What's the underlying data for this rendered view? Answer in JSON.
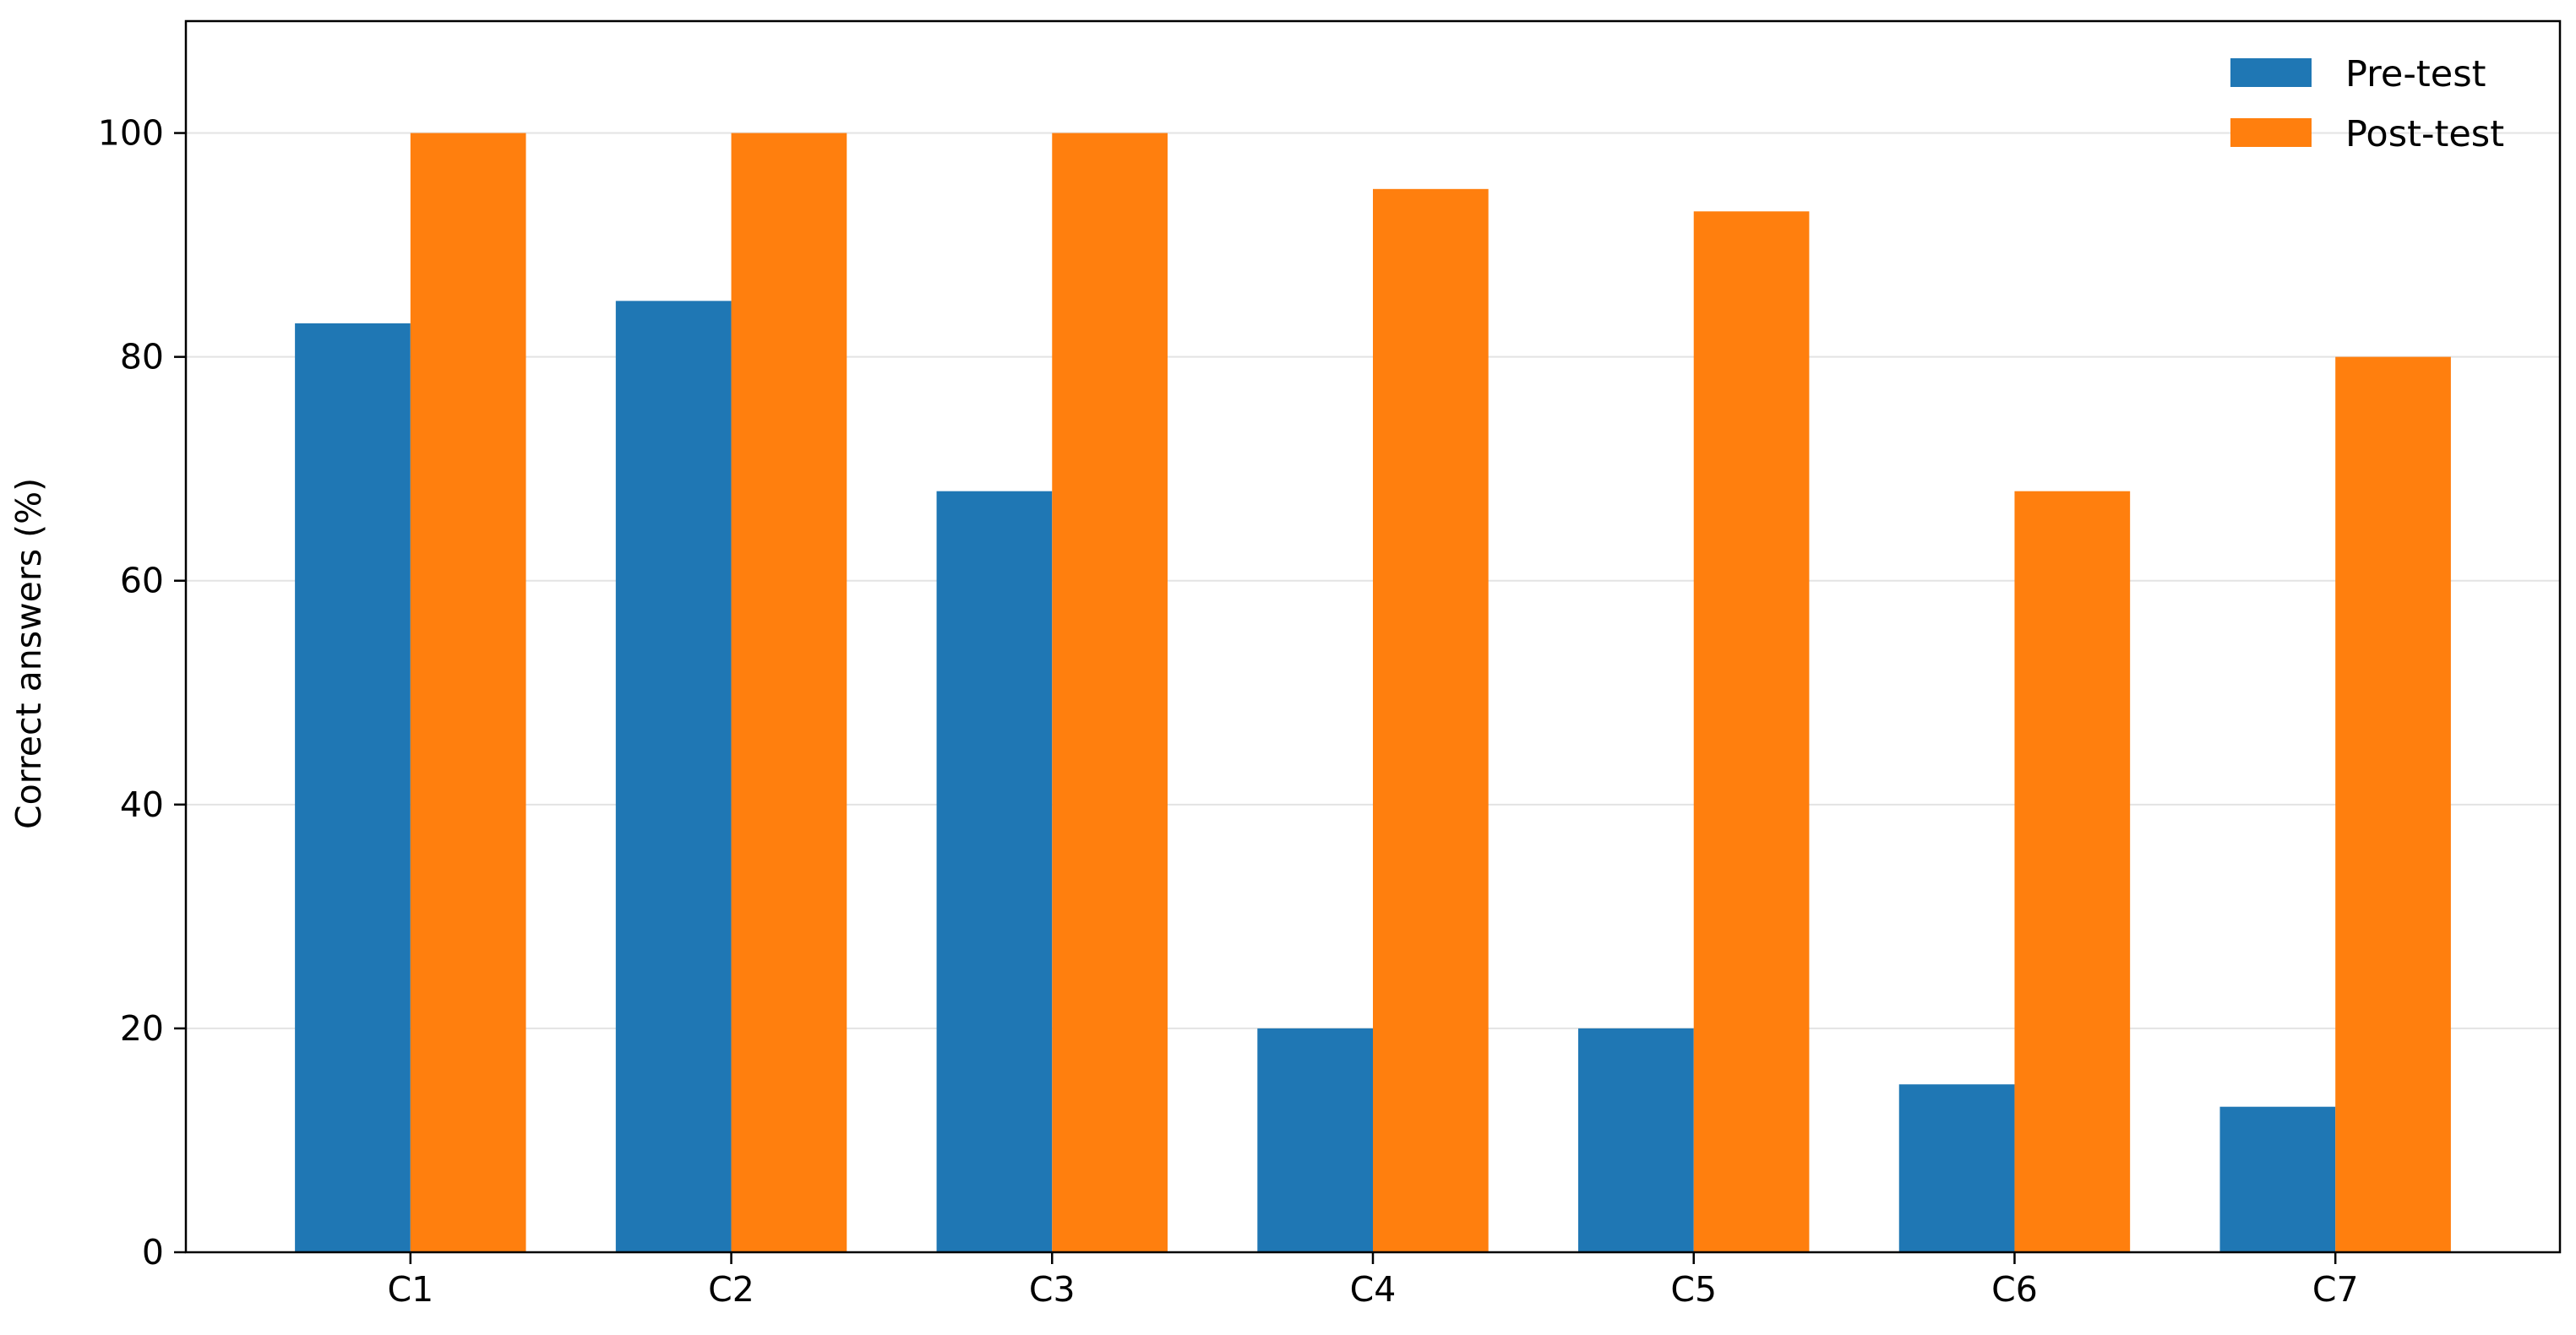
{
  "chart_data": {
    "type": "bar",
    "title": "",
    "xlabel": "",
    "ylabel": "Correct answers (%)",
    "categories": [
      "C1",
      "C2",
      "C3",
      "C4",
      "C5",
      "C6",
      "C7"
    ],
    "series": [
      {
        "name": "Pre-test",
        "color": "#1f77b4",
        "values": [
          83,
          85,
          68,
          20,
          20,
          15,
          13
        ]
      },
      {
        "name": "Post-test",
        "color": "#ff7f0e",
        "values": [
          100,
          100,
          100,
          95,
          93,
          68,
          80
        ]
      }
    ],
    "ylim": [
      0,
      110
    ],
    "yticks": [
      0,
      20,
      40,
      60,
      80,
      100
    ],
    "grid": "y",
    "legend_position": "top-right"
  }
}
